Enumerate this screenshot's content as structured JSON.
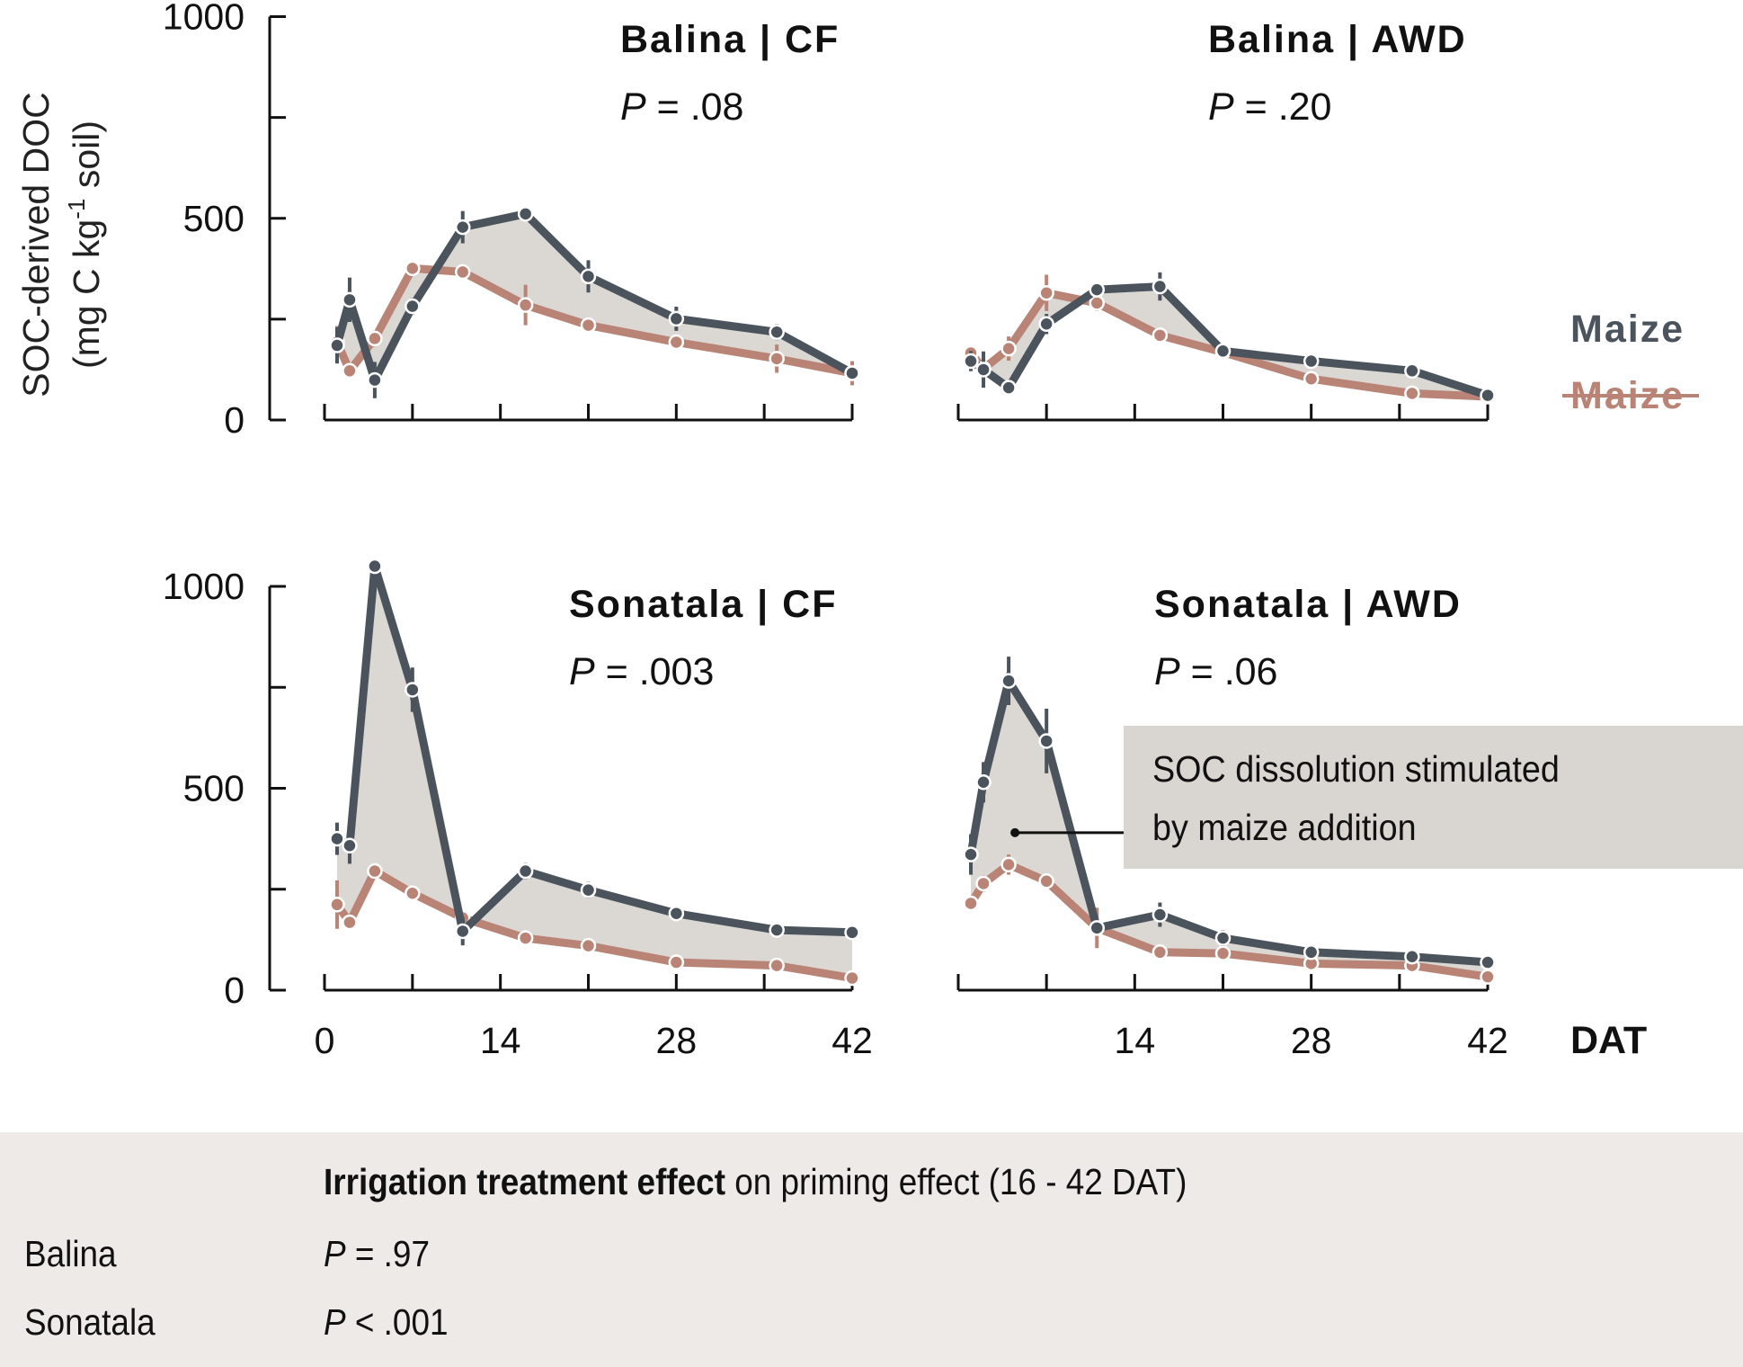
{
  "chart_data": {
    "type": "line",
    "ylabel_line1": "SOC-derived DOC",
    "ylabel_line2_pre": "(mg C kg",
    "ylabel_line2_sup": "-1",
    "ylabel_line2_post": " soil)",
    "xlabel": "DAT",
    "x_ticks": [
      0,
      7,
      14,
      21,
      28,
      35,
      42
    ],
    "x_tick_labels": [
      "0",
      "14",
      "28",
      "42"
    ],
    "x_tick_label_values": [
      0,
      14,
      28,
      42
    ],
    "y_ticks": [
      0,
      250,
      500,
      750,
      1000
    ],
    "y_tick_labels": [
      "0",
      "500",
      "1000"
    ],
    "y_tick_label_values": [
      0,
      500,
      1000
    ],
    "ylim": [
      0,
      1000
    ],
    "xlim": [
      0,
      42
    ],
    "legend": [
      {
        "label": "Maize",
        "style": "normal",
        "color": "#4b545c"
      },
      {
        "label": "Maize",
        "style": "strikethrough",
        "color": "#b98476"
      }
    ],
    "colors": {
      "maize": "#4b545c",
      "no_maize": "#b98476",
      "fill": "#dbd8d4"
    },
    "x": [
      1,
      2,
      4,
      7,
      11,
      16,
      21,
      28,
      36,
      42
    ],
    "panels": [
      {
        "title": "Balina | CF",
        "p_label": "P",
        "p_value": "= .08",
        "series": [
          {
            "name": "Maize",
            "values": [
              185,
              298,
              99,
              282,
              478,
              511,
              356,
              251,
              218,
              116
            ],
            "err": [
              45,
              55,
              45,
              20,
              40,
              15,
              40,
              30,
              20,
              15
            ]
          },
          {
            "name": "No maize",
            "values": [
              193,
              122,
              202,
              376,
              367,
              285,
              235,
              193,
              152,
              116
            ],
            "err": [
              40,
              15,
              20,
              15,
              15,
              50,
              15,
              15,
              35,
              30
            ]
          }
        ]
      },
      {
        "title": "Balina | AWD",
        "p_label": "P",
        "p_value": "= .20",
        "series": [
          {
            "name": "Maize",
            "values": [
              146,
              125,
              80,
              238,
              323,
              331,
              171,
              146,
              122,
              61
            ],
            "err": [
              25,
              45,
              15,
              25,
              15,
              35,
              15,
              15,
              15,
              10
            ]
          },
          {
            "name": "No maize",
            "values": [
              166,
              127,
              177,
              315,
              290,
              210,
              168,
              102,
              66,
              58
            ],
            "err": [
              15,
              25,
              30,
              45,
              20,
              15,
              15,
              15,
              15,
              10
            ]
          }
        ]
      },
      {
        "title": "Sonatala | CF",
        "p_label": "P",
        "p_value": "= .003",
        "series": [
          {
            "name": "Maize",
            "values": [
              375,
              358,
              1050,
              744,
              146,
              295,
              248,
              190,
              149,
              143
            ],
            "err": [
              40,
              45,
              15,
              55,
              35,
              20,
              20,
              10,
              10,
              10
            ]
          },
          {
            "name": "No maize",
            "values": [
              212,
              168,
              295,
              240,
              179,
              129,
              110,
              69,
              61,
              30
            ],
            "err": [
              60,
              15,
              15,
              10,
              15,
              15,
              10,
              10,
              10,
              10
            ]
          }
        ]
      },
      {
        "title": "Sonatala | AWD",
        "p_label": "P",
        "p_value": "= .06",
        "series": [
          {
            "name": "Maize",
            "values": [
              336,
              515,
              766,
              617,
              154,
              187,
              129,
              94,
              83,
              69
            ],
            "err": [
              50,
              50,
              60,
              80,
              15,
              30,
              20,
              15,
              15,
              15
            ]
          },
          {
            "name": "No maize",
            "values": [
              215,
              264,
              311,
              270,
              154,
              94,
              91,
              66,
              61,
              33
            ],
            "err": [
              10,
              20,
              25,
              10,
              50,
              10,
              10,
              10,
              10,
              10
            ]
          }
        ]
      }
    ],
    "annotation": {
      "line1": "SOC dissolution stimulated",
      "line2": "by maize addition",
      "anchor": {
        "panel": 3,
        "x": 4.5,
        "y": 390
      }
    }
  },
  "summary": {
    "title_bold": "Irrigation treatment effect",
    "title_rest": " on priming effect  (16 - 42 DAT)",
    "rows": [
      {
        "label": "Balina",
        "p_label": "P",
        "p_value": " = .97"
      },
      {
        "label": "Sonatala",
        "p_label": "P",
        "p_value": " < .001"
      }
    ]
  }
}
